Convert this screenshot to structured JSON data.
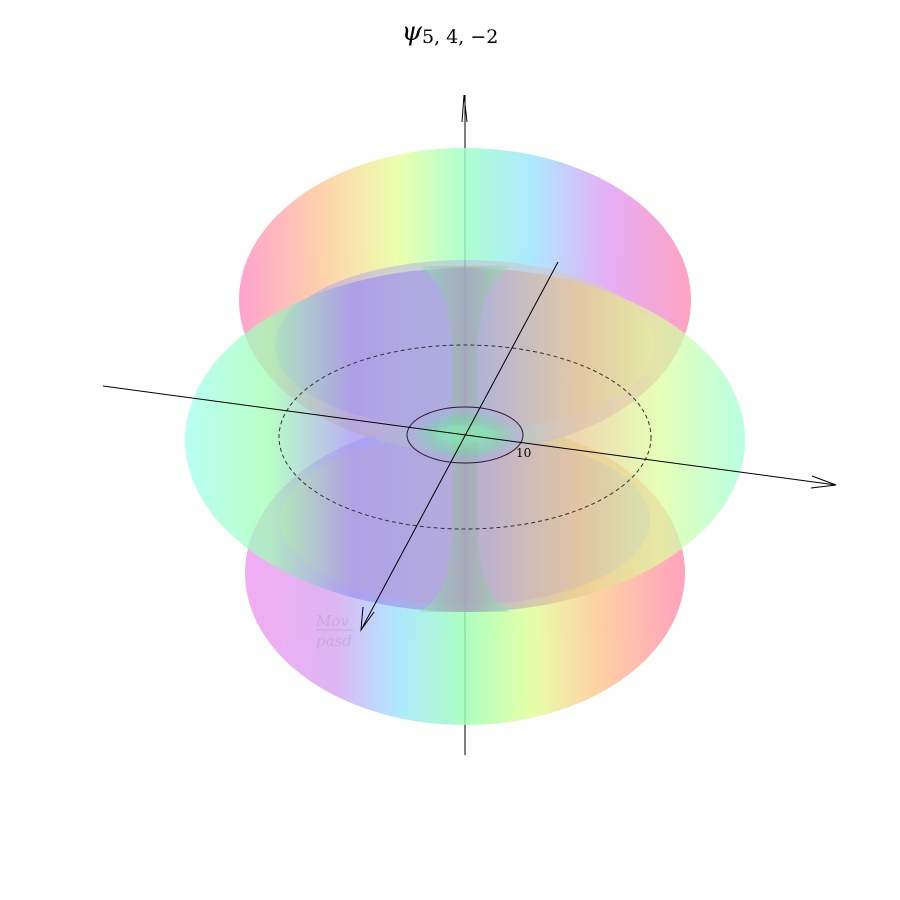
{
  "title": {
    "symbol": "ψ",
    "indices": "5, 4, −2"
  },
  "axes": {
    "tick_label": "10"
  },
  "watermark": {
    "line1": "Mov",
    "line2": "pasd"
  },
  "colors": {
    "axis": "#000000",
    "lobe_palette": [
      "#ff8fb0",
      "#ffd28a",
      "#dcff96",
      "#9cffb4",
      "#96f0ff",
      "#a08cf0",
      "#f09cf0"
    ]
  }
}
